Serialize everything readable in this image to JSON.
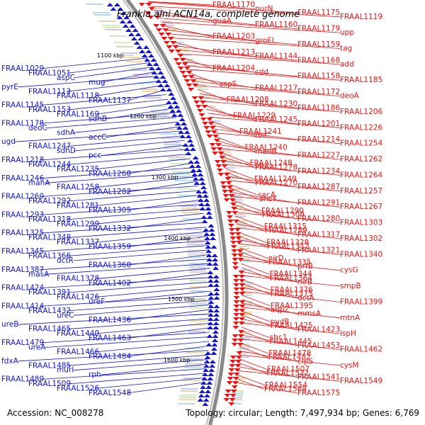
{
  "title": "Frankia alni ACN14a, complete genome",
  "footer": {
    "accession": "Accession: NC_008278",
    "summary": "Topology: circular; Length: 7,497,934 bp; Genes: 6,769"
  },
  "colors": {
    "forward_strand": "#ee1111",
    "reverse_strand": "#1111dd",
    "backbone": "#888888",
    "tick": "#2a8a2a"
  },
  "kbp_ticks": [
    "1100 kbp",
    "1200 kbp",
    "1300 kbp",
    "1400 kbp",
    "1500 kbp",
    "1600 kbp"
  ],
  "left_labels": [
    "FRAAL1029",
    "FRAAL1051",
    "aspC",
    "mug",
    "pyrE",
    "FRAAL1113",
    "FRAAL1118",
    "FRAAL1137",
    "FRAAL1145",
    "FRAAL1153",
    "FRAAL1169",
    "sdhB",
    "FRAAL1178",
    "deoC",
    "sdhA",
    "accC",
    "ugd",
    "FRAAL1247",
    "sdhD",
    "pcc",
    "FRAAL1218",
    "FRAAL1244",
    "FRAAL1235",
    "FRAAL1260",
    "FRAAL1246",
    "manA",
    "FRAAL1258",
    "FRAAL1282",
    "FRAAL1269",
    "FRAAL1292",
    "FRAAL1281",
    "FRAAL1305",
    "FRAAL1293",
    "FRAAL1318",
    "FRAAL1299",
    "FRAAL1332",
    "FRAAL1325",
    "FRAAL1348",
    "FRAAL1337",
    "FRAAL1359",
    "FRAAL1345",
    "FRAAL1366",
    "dctR",
    "FRAAL1360",
    "FRAAL1387",
    "masA",
    "FRAAL1378",
    "FRAAL1402",
    "FRAAL1424",
    "FRAAL1391",
    "FRAAL1426",
    "ureF",
    "FRAAL1414",
    "FRAAL1432",
    "ureC",
    "FRAAL1436",
    "ureB",
    "FRAAL1465",
    "FRAAL1440",
    "FRAAL1463",
    "FRAAL1479",
    "ureA",
    "FRAAL1466",
    "FRAAL1484",
    "fdxA",
    "FRAAL1485",
    "murI",
    "rph",
    "FRAAL1489",
    "FRAAL1509",
    "FRAAL1526",
    "FRAAL1548"
  ],
  "right_labels": [
    "FRAAL1170",
    "purN",
    "FRAAL1175",
    "FRAAL1119",
    "guaA",
    "FRAAL1160",
    "FRAAL1179",
    "upp",
    "FRAAL1203",
    "groEL",
    "FRAAL1159",
    "tag",
    "FRAAL1213",
    "FRAAL1144",
    "FRAAL1168",
    "add",
    "FRAAL1204",
    "cdd",
    "FRAAL1158",
    "FRAAL1185",
    "aspS",
    "FRAAL1217",
    "FRAAL1172",
    "deoA",
    "FRAAL1208",
    "FRAAL1230",
    "FRAAL1186",
    "FRAAL1206",
    "FRAAL1229",
    "FRAAL1245",
    "FRAAL1201",
    "FRAAL1226",
    "FRAAL1241",
    "fbiC",
    "FRAAL1214",
    "FRAAL1254",
    "FRAAL1240",
    "manB",
    "FRAAL1227",
    "FRAAL1262",
    "FRAAL1248",
    "FRAAL1278",
    "FRAAL1234",
    "FRAAL1264",
    "FRAAL1249",
    "FRAAL1270",
    "FRAAL1287",
    "FRAAL1257",
    "secA",
    "ahcY",
    "FRAAL1291",
    "FRAAL1267",
    "FRAAL1290",
    "FRAAL1309",
    "FRAAL1280",
    "FRAAL1303",
    "FRAAL1315",
    "FRAAL1289",
    "FRAAL1317",
    "FRAAL1302",
    "FRAAL1328",
    "FRAAL1312",
    "FRAAL1321",
    "FRAAL1340",
    "nirD",
    "FRAAL1335",
    "prfB",
    "cysG",
    "FRAAL1344",
    "FRAAL1364",
    "nirB",
    "smpB",
    "FRAAL1376",
    "FRAAL1375",
    "dctA",
    "FRAAL1399",
    "FRAAL1395",
    "aqpZ",
    "mmsA",
    "mtnA",
    "pydB",
    "FRAAL1425",
    "FRAAL1423",
    "ispH",
    "shc1",
    "FRAAL1445",
    "FRAAL1453",
    "FRAAL1462",
    "FRAAL1478",
    "FRAAL1482",
    "clpS",
    "cysM",
    "FRAAL1507",
    "FRAAL1522",
    "FRAAL1541",
    "FRAAL1549",
    "FRAAL1554",
    "FRAAL1568",
    "FRAAL1575"
  ]
}
